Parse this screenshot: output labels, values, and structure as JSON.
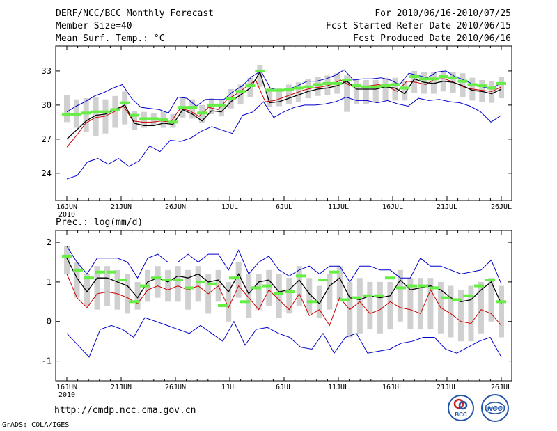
{
  "header": {
    "title": "DERF/NCC/BCC Monthly Forecast",
    "member_size": "Member Size=40",
    "variable": "Mean Surf. Temp.: °C",
    "period": "For 2010/06/16-2010/07/25",
    "started": "Fcst Started Refer Date 2010/06/15",
    "produced": "Fcst Produced Date 2010/06/16"
  },
  "footer": {
    "url": "http://cmdp.ncc.cma.gov.cn",
    "grads": "GrADS: COLA/IGES",
    "logo_bcc": "BCC",
    "logo_ncc": "NCC"
  },
  "colors": {
    "spread_line": "#0000cc",
    "ensemble_mean": "#000000",
    "alt_line": "#cc0000",
    "median_marker": "#66ee44",
    "box": "#d0d0d0"
  },
  "chart_data": [
    {
      "type": "line",
      "title": "Mean Surf. Temp.: °C",
      "x_ticks": [
        "16JUN",
        "21JUN",
        "26JUN",
        "1JUL",
        "6JUL",
        "11JUL",
        "16JUL",
        "21JUL",
        "26JUL"
      ],
      "x_year_label": "2010",
      "ylim": [
        21.6,
        35.2
      ],
      "y_ticks": [
        24,
        27,
        30,
        33
      ],
      "days": 40,
      "series": [
        {
          "name": "max",
          "color": "#0000cc",
          "values": [
            29.4,
            29.9,
            30.3,
            30.8,
            31.1,
            31.5,
            31.8,
            30.6,
            29.8,
            29.7,
            29.6,
            29.3,
            30.7,
            30.6,
            29.9,
            30.5,
            30.5,
            30.5,
            31.2,
            31.7,
            32.5,
            33.0,
            31.5,
            31.3,
            31.4,
            31.7,
            32.1,
            32.1,
            32.3,
            32.6,
            33.1,
            32.2,
            32.3,
            32.3,
            32.4,
            32.2,
            31.8,
            32.8,
            32.6,
            32.4,
            32.9,
            33.0,
            32.5,
            32.2,
            31.8,
            31.6,
            31.4,
            32.0
          ]
        },
        {
          "name": "min",
          "color": "#0000cc",
          "values": [
            23.5,
            23.8,
            25.0,
            25.3,
            24.8,
            25.3,
            24.6,
            25.1,
            26.4,
            25.9,
            26.9,
            26.8,
            27.1,
            27.7,
            28.1,
            27.8,
            27.5,
            29.1,
            29.4,
            30.3,
            28.9,
            29.4,
            29.8,
            30.0,
            30.0,
            30.1,
            30.3,
            30.7,
            30.4,
            30.4,
            30.2,
            30.4,
            30.1,
            29.9,
            30.6,
            30.4,
            30.5,
            30.3,
            30.2,
            29.9,
            29.4,
            28.5,
            29.1
          ]
        },
        {
          "name": "alt",
          "color": "#cc0000",
          "values": [
            26.3,
            27.3,
            28.4,
            28.9,
            29.0,
            29.4,
            29.9,
            28.6,
            28.5,
            28.5,
            28.6,
            28.5,
            29.7,
            29.5,
            29.0,
            29.8,
            29.6,
            30.5,
            31.0,
            31.6,
            32.2,
            30.3,
            30.4,
            30.7,
            31.0,
            31.3,
            31.5,
            31.6,
            31.8,
            32.2,
            31.7,
            31.6,
            31.7,
            31.8,
            31.6,
            31.2,
            32.1,
            32.0,
            31.8,
            32.3,
            32.3,
            32.0,
            31.6,
            31.4,
            31.3,
            31.2,
            31.6
          ]
        },
        {
          "name": "mean",
          "color": "#000000",
          "values": [
            27.0,
            27.8,
            28.6,
            29.1,
            29.2,
            29.6,
            30.0,
            28.4,
            28.2,
            28.2,
            28.4,
            28.3,
            29.6,
            29.2,
            28.6,
            29.5,
            29.4,
            30.3,
            30.9,
            31.5,
            32.9,
            30.2,
            30.3,
            30.6,
            30.9,
            31.2,
            31.4,
            31.5,
            31.7,
            32.1,
            31.4,
            31.4,
            31.4,
            31.6,
            31.5,
            31.0,
            32.3,
            32.0,
            31.9,
            32.1,
            32.0,
            31.7,
            31.3,
            31.2,
            31.0,
            31.4
          ]
        },
        {
          "name": "median",
          "color": "#66ee44",
          "values": [
            29.2,
            29.2,
            29.3,
            29.4,
            29.4,
            29.6,
            30.2,
            29.1,
            28.8,
            28.8,
            28.7,
            28.5,
            29.8,
            29.8,
            29.3,
            30.0,
            30.0,
            30.6,
            31.2,
            31.7,
            33.0,
            31.3,
            31.3,
            31.4,
            31.5,
            31.6,
            31.8,
            31.9,
            31.9,
            32.2,
            31.7,
            31.6,
            31.6,
            31.7,
            31.8,
            31.5,
            32.5,
            32.3,
            32.3,
            32.5,
            32.4,
            32.1,
            31.8,
            31.7,
            31.5,
            31.9
          ]
        }
      ],
      "box_ranges": [
        [
          28.5,
          30.9
        ],
        [
          28.0,
          30.5
        ],
        [
          27.6,
          30.6
        ],
        [
          27.3,
          30.7
        ],
        [
          27.5,
          30.5
        ],
        [
          28.0,
          30.8
        ],
        [
          28.3,
          31.2
        ],
        [
          27.8,
          29.5
        ],
        [
          28.0,
          29.4
        ],
        [
          28.2,
          29.3
        ],
        [
          28.0,
          29.5
        ],
        [
          28.0,
          29.2
        ],
        [
          28.9,
          30.7
        ],
        [
          28.8,
          30.5
        ],
        [
          28.4,
          30.0
        ],
        [
          29.2,
          30.6
        ],
        [
          29.0,
          30.5
        ],
        [
          29.7,
          31.4
        ],
        [
          30.1,
          31.8
        ],
        [
          30.7,
          32.4
        ],
        [
          31.6,
          33.5
        ],
        [
          29.8,
          31.5
        ],
        [
          29.9,
          31.5
        ],
        [
          30.1,
          31.8
        ],
        [
          30.3,
          32.0
        ],
        [
          30.6,
          32.3
        ],
        [
          30.8,
          32.5
        ],
        [
          30.9,
          32.6
        ],
        [
          31.0,
          32.8
        ],
        [
          29.4,
          32.6
        ],
        [
          30.1,
          32.3
        ],
        [
          30.1,
          32.2
        ],
        [
          30.2,
          32.2
        ],
        [
          30.4,
          32.4
        ],
        [
          30.4,
          32.4
        ],
        [
          30.4,
          32.1
        ],
        [
          31.1,
          33.0
        ],
        [
          31.0,
          32.9
        ],
        [
          31.0,
          32.9
        ],
        [
          31.2,
          33.0
        ],
        [
          31.1,
          32.9
        ],
        [
          30.7,
          32.8
        ],
        [
          30.4,
          32.4
        ],
        [
          30.3,
          32.2
        ],
        [
          30.2,
          32.1
        ],
        [
          30.6,
          32.5
        ]
      ]
    },
    {
      "type": "line",
      "title": "Prec.: log(mm/d)",
      "x_ticks": [
        "16JUN",
        "21JUN",
        "26JUN",
        "1JUL",
        "6JUL",
        "11JUL",
        "16JUL",
        "21JUL",
        "26JUL"
      ],
      "x_year_label": "2010",
      "ylim": [
        -1.5,
        2.3
      ],
      "y_ticks": [
        -1,
        0,
        1,
        2
      ],
      "days": 40,
      "series": [
        {
          "name": "max",
          "color": "#0000cc",
          "values": [
            1.9,
            1.5,
            1.2,
            1.6,
            1.6,
            1.6,
            1.5,
            1.1,
            1.6,
            1.7,
            1.5,
            1.5,
            1.7,
            1.5,
            1.7,
            1.7,
            1.3,
            1.8,
            1.2,
            1.5,
            1.65,
            1.3,
            1.15,
            1.3,
            1.4,
            1.2,
            1.4,
            1.4,
            1.0,
            1.4,
            1.4,
            1.3,
            1.3,
            1.1,
            1.1,
            1.6,
            1.4,
            1.4,
            1.3,
            1.2,
            1.25,
            1.3,
            1.55,
            0.95
          ]
        },
        {
          "name": "min",
          "color": "#0000cc",
          "values": [
            -0.3,
            -0.6,
            -0.9,
            -0.2,
            -0.1,
            -0.2,
            -0.4,
            0.1,
            0.0,
            -0.1,
            -0.2,
            -0.3,
            -0.1,
            -0.3,
            -0.5,
            0.0,
            -0.6,
            -0.2,
            -0.15,
            -0.3,
            -0.4,
            -0.65,
            -0.7,
            -0.3,
            -0.8,
            -0.4,
            -0.3,
            -0.8,
            -0.75,
            -0.7,
            -0.55,
            -0.5,
            -0.4,
            -0.4,
            -0.7,
            -0.8,
            -0.65,
            -0.5,
            -0.4,
            -0.9
          ]
        },
        {
          "name": "alt",
          "color": "#cc0000",
          "values": [
            1.2,
            0.6,
            0.35,
            0.7,
            0.75,
            0.7,
            0.6,
            0.45,
            0.8,
            0.9,
            0.8,
            0.9,
            0.8,
            0.9,
            0.7,
            0.9,
            0.35,
            0.9,
            0.6,
            0.3,
            0.8,
            0.55,
            0.3,
            0.7,
            0.15,
            0.3,
            -0.1,
            0.6,
            0.3,
            0.5,
            0.2,
            0.3,
            0.5,
            0.35,
            0.3,
            0.2,
            0.8,
            0.35,
            0.2,
            0.0,
            -0.05,
            0.3,
            0.2,
            -0.1
          ]
        },
        {
          "name": "mean",
          "color": "#000000",
          "values": [
            1.6,
            1.1,
            0.75,
            1.1,
            1.1,
            1.0,
            0.9,
            0.6,
            1.0,
            1.1,
            1.0,
            1.15,
            1.1,
            1.2,
            1.0,
            1.05,
            0.75,
            1.2,
            0.7,
            1.0,
            1.05,
            0.75,
            0.8,
            1.05,
            0.7,
            0.45,
            0.9,
            1.1,
            0.6,
            0.55,
            0.65,
            0.6,
            0.65,
            1.05,
            0.8,
            0.85,
            0.9,
            0.8,
            0.6,
            0.5,
            0.55,
            0.8,
            1.0,
            0.45
          ]
        },
        {
          "name": "median",
          "color": "#66ee44",
          "values": [
            1.65,
            1.3,
            1.1,
            1.25,
            1.25,
            1.05,
            0.5,
            0.9,
            1.1,
            1.05,
            1.05,
            0.85,
            1.0,
            0.95,
            0.4,
            1.1,
            0.5,
            0.85,
            0.9,
            0.7,
            0.75,
            1.15,
            0.5,
            1.05,
            1.25,
            0.55,
            0.6,
            0.65,
            0.65,
            1.1,
            0.85,
            0.9,
            0.9,
            0.85,
            0.6,
            0.55,
            0.65,
            0.9,
            1.05,
            0.5
          ]
        }
      ],
      "box_ranges": [
        [
          1.2,
          1.9
        ],
        [
          0.6,
          1.5
        ],
        [
          0.4,
          1.2
        ],
        [
          0.3,
          1.4
        ],
        [
          0.4,
          1.4
        ],
        [
          0.3,
          1.3
        ],
        [
          0.2,
          1.2
        ],
        [
          0.3,
          1.0
        ],
        [
          0.5,
          1.3
        ],
        [
          0.6,
          1.4
        ],
        [
          0.5,
          1.3
        ],
        [
          0.5,
          1.4
        ],
        [
          0.3,
          1.3
        ],
        [
          0.5,
          1.4
        ],
        [
          0.2,
          1.2
        ],
        [
          0.5,
          1.3
        ],
        [
          0.0,
          1.0
        ],
        [
          0.6,
          1.5
        ],
        [
          0.1,
          1.2
        ],
        [
          0.3,
          1.2
        ],
        [
          0.4,
          1.3
        ],
        [
          0.1,
          1.2
        ],
        [
          0.2,
          1.1
        ],
        [
          0.4,
          1.4
        ],
        [
          0.2,
          1.1
        ],
        [
          0.1,
          0.9
        ],
        [
          0.3,
          1.2
        ],
        [
          0.5,
          1.4
        ],
        [
          -0.4,
          1.0
        ],
        [
          -0.3,
          1.1
        ],
        [
          -0.2,
          1.0
        ],
        [
          -0.3,
          1.0
        ],
        [
          -0.2,
          1.0
        ],
        [
          0.0,
          1.3
        ],
        [
          -0.2,
          1.1
        ],
        [
          -0.2,
          1.1
        ],
        [
          -0.2,
          1.1
        ],
        [
          -0.3,
          1.0
        ],
        [
          -0.4,
          0.9
        ],
        [
          -0.5,
          0.8
        ],
        [
          -0.5,
          0.9
        ],
        [
          -0.3,
          1.0
        ],
        [
          0.0,
          1.1
        ],
        [
          -0.4,
          0.9
        ]
      ]
    }
  ]
}
